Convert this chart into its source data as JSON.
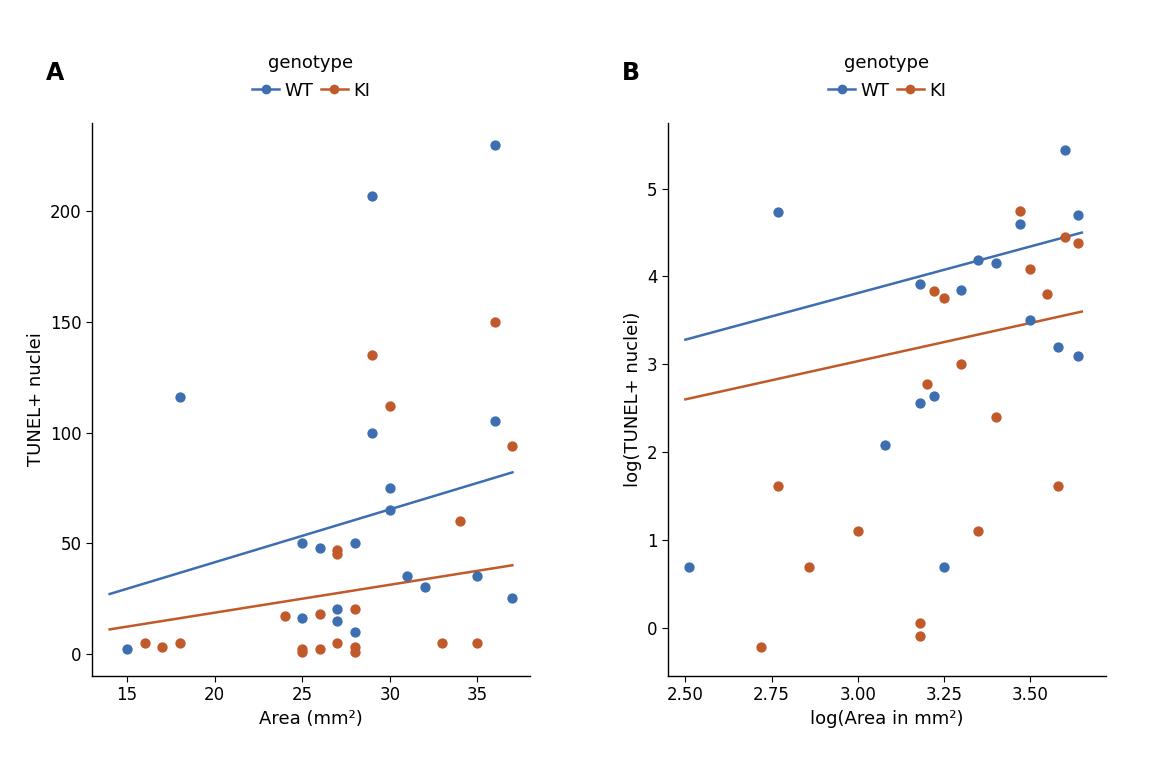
{
  "panel_A": {
    "wt_x": [
      15,
      18,
      25,
      25,
      26,
      27,
      27,
      28,
      28,
      29,
      29,
      30,
      30,
      31,
      32,
      35,
      36,
      36,
      37
    ],
    "wt_y": [
      2,
      116,
      16,
      50,
      48,
      20,
      15,
      50,
      10,
      207,
      100,
      65,
      75,
      35,
      30,
      35,
      105,
      230,
      25
    ],
    "ki_x": [
      16,
      17,
      18,
      24,
      25,
      25,
      26,
      26,
      27,
      27,
      27,
      28,
      28,
      28,
      29,
      30,
      33,
      34,
      35,
      36,
      37
    ],
    "ki_y": [
      5,
      3,
      5,
      17,
      1,
      2,
      2,
      18,
      47,
      45,
      5,
      20,
      3,
      1,
      135,
      112,
      5,
      60,
      5,
      150,
      94
    ],
    "wt_line_x": [
      14,
      37
    ],
    "wt_line_y": [
      27,
      82
    ],
    "ki_line_x": [
      14,
      37
    ],
    "ki_line_y": [
      11,
      40
    ],
    "xlabel": "Area (mm²)",
    "ylabel": "TUNEL+ nuclei",
    "xlim": [
      13,
      38
    ],
    "ylim": [
      -10,
      240
    ],
    "yticks": [
      0,
      50,
      100,
      150,
      200
    ],
    "xticks": [
      15,
      20,
      25,
      30,
      35
    ]
  },
  "panel_B": {
    "wt_x": [
      2.51,
      2.77,
      3.08,
      3.18,
      3.18,
      3.22,
      3.25,
      3.3,
      3.35,
      3.4,
      3.47,
      3.5,
      3.58,
      3.6,
      3.64,
      3.64
    ],
    "wt_y": [
      0.69,
      4.74,
      2.08,
      3.91,
      2.56,
      2.64,
      0.69,
      3.85,
      4.19,
      4.15,
      4.6,
      3.5,
      3.2,
      5.44,
      4.7,
      3.09
    ],
    "ki_x": [
      2.72,
      2.77,
      2.86,
      3.0,
      3.18,
      3.18,
      3.2,
      3.22,
      3.25,
      3.3,
      3.35,
      3.4,
      3.47,
      3.5,
      3.55,
      3.58,
      3.6,
      3.64
    ],
    "ki_y": [
      -0.22,
      1.61,
      0.69,
      1.1,
      -0.1,
      0.05,
      2.77,
      3.83,
      3.76,
      3.0,
      1.1,
      2.4,
      4.75,
      4.09,
      3.8,
      1.61,
      4.45,
      4.38
    ],
    "wt_line_x": [
      2.5,
      3.65
    ],
    "wt_line_y": [
      3.28,
      4.5
    ],
    "ki_line_x": [
      2.5,
      3.65
    ],
    "ki_line_y": [
      2.6,
      3.6
    ],
    "xlabel": "log(Area in mm²)",
    "ylabel": "log(TUNEL+ nuclei)",
    "xlim": [
      2.45,
      3.72
    ],
    "ylim": [
      -0.55,
      5.75
    ],
    "yticks": [
      0,
      1,
      2,
      3,
      4,
      5
    ],
    "xticks": [
      2.5,
      2.75,
      3.0,
      3.25,
      3.5
    ]
  },
  "wt_color": "#3d6eb0",
  "ki_color": "#c05a2a",
  "marker_size": 55,
  "line_width": 1.8,
  "font_size": 12,
  "label_font_size": 13,
  "legend_font_size": 13,
  "panel_label_size": 17
}
